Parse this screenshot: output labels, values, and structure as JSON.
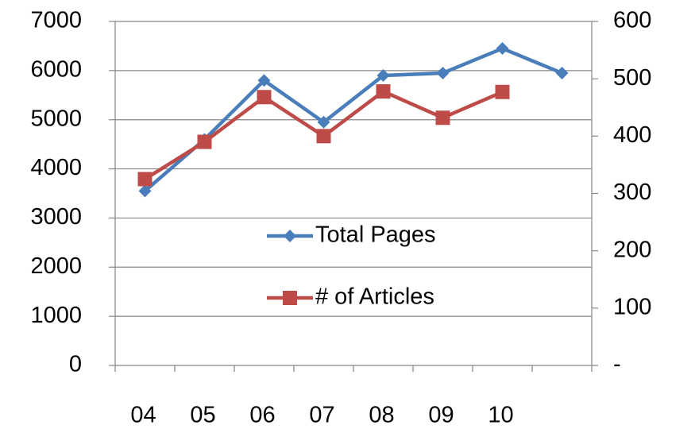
{
  "chart_data": {
    "type": "line",
    "categories": [
      "04",
      "05",
      "06",
      "07",
      "08",
      "09",
      "10",
      null
    ],
    "series": [
      {
        "name": "Total Pages",
        "color": "#4a7ebb",
        "marker": "diamond",
        "values": [
          3550,
          4600,
          5800,
          4950,
          5900,
          5950,
          6450,
          5950
        ]
      },
      {
        "name": "# of Articles",
        "color": "#be4b48",
        "marker": "square",
        "axis": "y2",
        "values": [
          325,
          390,
          468,
          400,
          478,
          432,
          477,
          null
        ]
      }
    ],
    "ylim": [
      0,
      7000
    ],
    "yticks": [
      0,
      1000,
      2000,
      3000,
      4000,
      5000,
      6000,
      7000
    ],
    "y2lim": [
      0,
      600
    ],
    "y2ticks": [
      {
        "value": 0,
        "label": "-"
      },
      100,
      200,
      300,
      400,
      500,
      600
    ],
    "grid": true,
    "legend": "center"
  }
}
